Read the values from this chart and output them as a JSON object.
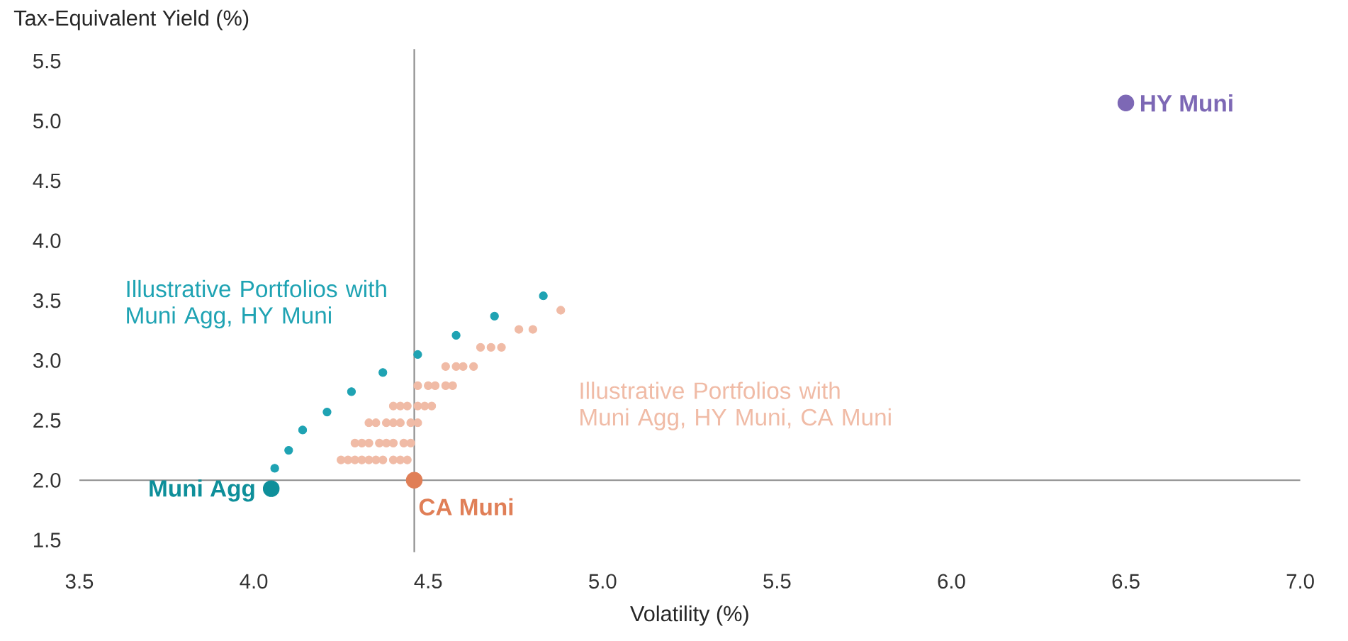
{
  "chart_data": {
    "type": "scatter",
    "xlabel": "Volatility (%)",
    "ylabel": "Tax-Equivalent Yield (%)",
    "xlim": [
      3.5,
      7.0
    ],
    "ylim": [
      1.4,
      5.6
    ],
    "xticks": [
      {
        "value": 3.5,
        "label": "3.5"
      },
      {
        "value": 4.0,
        "label": "4.0"
      },
      {
        "value": 4.5,
        "label": "4.5"
      },
      {
        "value": 5.0,
        "label": "5.0"
      },
      {
        "value": 5.5,
        "label": "5.5"
      },
      {
        "value": 6.0,
        "label": "6.0"
      },
      {
        "value": 6.5,
        "label": "6.5"
      },
      {
        "value": 7.0,
        "label": "7.0"
      }
    ],
    "yticks": [
      1.5,
      {
        "value": 2.0,
        "label": "2.0"
      },
      2.5,
      {
        "value": 3.0,
        "label": "3.0"
      },
      3.5,
      {
        "value": 4.0,
        "label": "4.0"
      },
      4.5,
      {
        "value": 5.0,
        "label": "5.0"
      },
      5.5
    ],
    "legend": false,
    "grid": false,
    "ref_lines": [
      {
        "axis": "x",
        "value": 4.46,
        "color": "#8c8c8c"
      },
      {
        "axis": "y",
        "value": 2.0,
        "color": "#8c8c8c"
      }
    ],
    "series": [
      {
        "name": "Illustrative Portfolios with Muni Agg, HY Muni",
        "color": "#1fa3b3",
        "x": [
          4.06,
          4.1,
          4.14,
          4.21,
          4.28,
          4.37,
          4.47,
          4.58,
          4.69,
          4.83
        ],
        "values": [
          2.1,
          2.25,
          2.42,
          2.57,
          2.74,
          2.9,
          3.05,
          3.21,
          3.37,
          3.54
        ]
      },
      {
        "name": "Illustrative Portfolios with Muni Agg, HY Muni, CA Muni",
        "color": "#f0bba6",
        "x": [
          4.25,
          4.27,
          4.29,
          4.31,
          4.33,
          4.35,
          4.37,
          4.4,
          4.42,
          4.44,
          4.29,
          4.31,
          4.33,
          4.36,
          4.38,
          4.4,
          4.43,
          4.45,
          4.33,
          4.35,
          4.38,
          4.4,
          4.42,
          4.45,
          4.47,
          4.4,
          4.42,
          4.44,
          4.47,
          4.49,
          4.51,
          4.47,
          4.5,
          4.52,
          4.55,
          4.57,
          4.55,
          4.58,
          4.6,
          4.63,
          4.65,
          4.68,
          4.71,
          4.76,
          4.8,
          4.88
        ],
        "values": [
          2.17,
          2.17,
          2.17,
          2.17,
          2.17,
          2.17,
          2.17,
          2.17,
          2.17,
          2.17,
          2.31,
          2.31,
          2.31,
          2.31,
          2.31,
          2.31,
          2.31,
          2.31,
          2.48,
          2.48,
          2.48,
          2.48,
          2.48,
          2.48,
          2.48,
          2.62,
          2.62,
          2.62,
          2.62,
          2.62,
          2.62,
          2.79,
          2.79,
          2.79,
          2.79,
          2.79,
          2.95,
          2.95,
          2.95,
          2.95,
          3.11,
          3.11,
          3.11,
          3.26,
          3.26,
          3.42
        ]
      },
      {
        "name": "Muni Agg",
        "color": "#0e8f9a",
        "x": [
          4.05
        ],
        "values": [
          1.93
        ]
      },
      {
        "name": "CA Muni",
        "color": "#e07f57",
        "x": [
          4.46
        ],
        "values": [
          2.0
        ]
      },
      {
        "name": "HY Muni",
        "color": "#7d68b5",
        "x": [
          6.5
        ],
        "values": [
          5.15
        ]
      }
    ]
  }
}
